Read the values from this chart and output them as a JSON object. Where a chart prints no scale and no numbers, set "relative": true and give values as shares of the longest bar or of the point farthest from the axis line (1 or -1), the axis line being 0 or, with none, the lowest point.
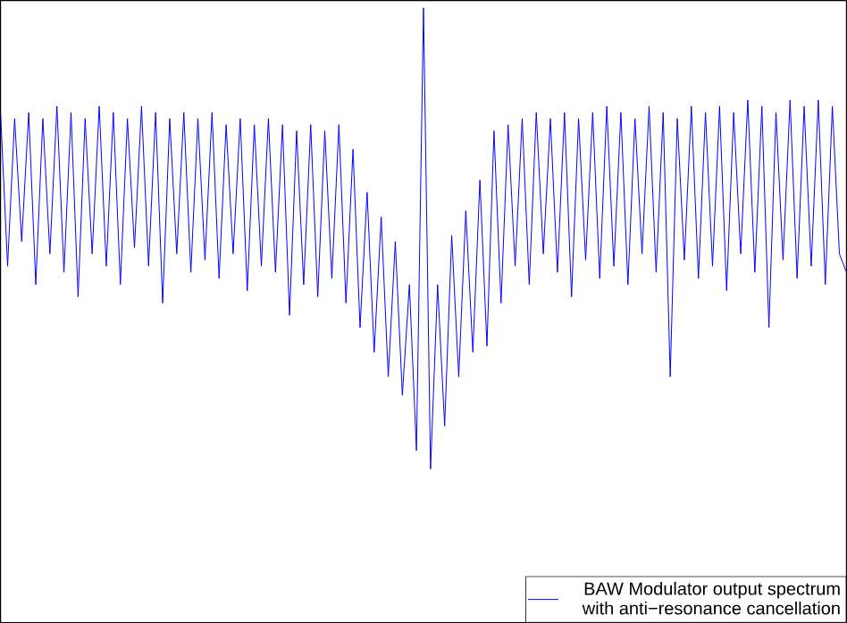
{
  "chart_data": {
    "type": "line",
    "relative": true,
    "legend": "bottom right",
    "categories": [
      null,
      null,
      null,
      null,
      null,
      null,
      null,
      null,
      null,
      null,
      null,
      null,
      null,
      null,
      null,
      null,
      null,
      null,
      null,
      null,
      null,
      null,
      null,
      null,
      null,
      null,
      null,
      null,
      null,
      null,
      null,
      null,
      null,
      null,
      null,
      null,
      null,
      null,
      null,
      null,
      null,
      null,
      null,
      null,
      null,
      null,
      null,
      null,
      null,
      null,
      null,
      null,
      null,
      null,
      null,
      null,
      null,
      null,
      null,
      null,
      null,
      null,
      null,
      null,
      null,
      null,
      null,
      null,
      null,
      null,
      null,
      null,
      null,
      null,
      null,
      null,
      null,
      null,
      null,
      null,
      null,
      null,
      null,
      null,
      null,
      null,
      null,
      null,
      null,
      null,
      null,
      null,
      null,
      null,
      null,
      null,
      null,
      null,
      null,
      null,
      null,
      null,
      null,
      null,
      null,
      null,
      null,
      null,
      null,
      null,
      null,
      null,
      null,
      null,
      null,
      null,
      null,
      null,
      null,
      null,
      null
    ],
    "series": [
      {
        "name": "BAW Modulator output spectrum with anti−resonance cancellation",
        "color": "#0000ff",
        "values": [
          0.83,
          0.58,
          0.82,
          0.62,
          0.83,
          0.55,
          0.82,
          0.6,
          0.84,
          0.57,
          0.83,
          0.53,
          0.82,
          0.6,
          0.84,
          0.58,
          0.83,
          0.55,
          0.82,
          0.61,
          0.84,
          0.58,
          0.83,
          0.52,
          0.82,
          0.6,
          0.83,
          0.57,
          0.82,
          0.59,
          0.83,
          0.56,
          0.81,
          0.6,
          0.82,
          0.54,
          0.81,
          0.58,
          0.82,
          0.57,
          0.81,
          0.5,
          0.8,
          0.55,
          0.81,
          0.53,
          0.8,
          0.56,
          0.81,
          0.52,
          0.77,
          0.48,
          0.7,
          0.44,
          0.66,
          0.4,
          0.62,
          0.37,
          0.55,
          0.28,
          1.0,
          0.25,
          0.55,
          0.32,
          0.63,
          0.4,
          0.67,
          0.44,
          0.72,
          0.45,
          0.8,
          0.52,
          0.81,
          0.58,
          0.82,
          0.55,
          0.83,
          0.6,
          0.82,
          0.57,
          0.83,
          0.53,
          0.82,
          0.59,
          0.83,
          0.56,
          0.84,
          0.58,
          0.83,
          0.55,
          0.82,
          0.6,
          0.84,
          0.57,
          0.83,
          0.4,
          0.82,
          0.59,
          0.84,
          0.56,
          0.83,
          0.58,
          0.84,
          0.54,
          0.83,
          0.6,
          0.85,
          0.57,
          0.84,
          0.48,
          0.83,
          0.59,
          0.85,
          0.56,
          0.84,
          0.58,
          0.85,
          0.55,
          0.84,
          0.6,
          0.57
        ]
      }
    ]
  }
}
